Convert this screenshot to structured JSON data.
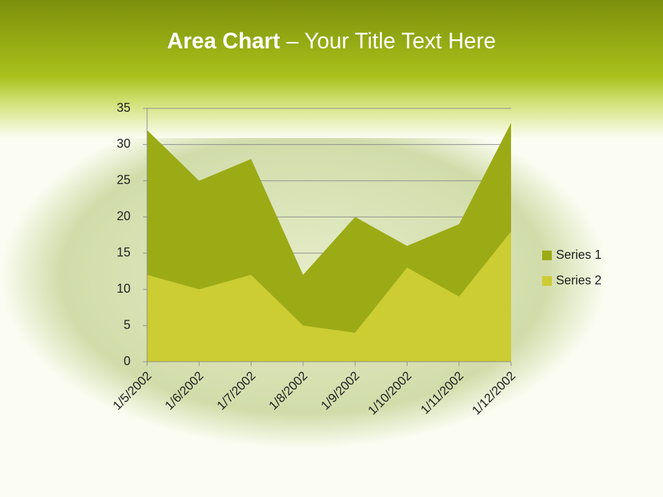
{
  "chart_data": {
    "type": "area",
    "title_bold": "Area Chart",
    "title": " – Your Title Text Here",
    "categories": [
      "1/5/2002",
      "1/6/2002",
      "1/7/2002",
      "1/8/2002",
      "1/9/2002",
      "1/10/2002",
      "1/11/2002",
      "1/12/2002"
    ],
    "series": [
      {
        "name": "Series 1",
        "color": "#9bab16",
        "values": [
          32,
          25,
          28,
          12,
          20,
          16,
          19,
          33
        ]
      },
      {
        "name": "Series 2",
        "color": "#cccc33",
        "values": [
          12,
          10,
          12,
          5,
          4,
          13,
          9,
          18
        ]
      }
    ],
    "ylim": [
      0,
      35
    ],
    "yticks": [
      0,
      5,
      10,
      15,
      20,
      25,
      30,
      35
    ],
    "grid": true,
    "legend": "right"
  }
}
